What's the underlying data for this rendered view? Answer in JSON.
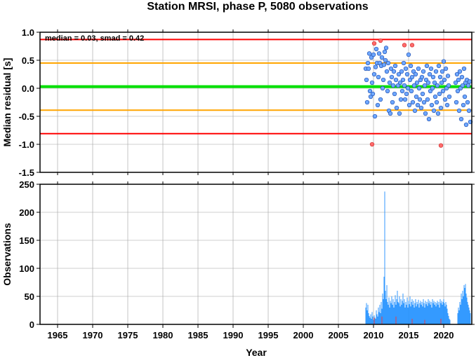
{
  "title": "Station MRSI, phase P, 5080 observations",
  "colors": {
    "red_line": "#ff0000",
    "orange_line": "#ffa500",
    "green_line": "#00e000",
    "point_fill": "#6fa8ff",
    "point_stroke": "#1f4fb0",
    "outlier_fill": "#ff6b6b",
    "outlier_stroke": "#d03030",
    "bar": "#1e90ff",
    "bar_red": "#ff3030",
    "grid": "#a0a0a0"
  },
  "chart_data": [
    {
      "type": "scatter",
      "ylabel": "Median residual [s]",
      "annotation": "median = 0.03, smad = 0.42",
      "xlim": [
        1962.5,
        2024.0
      ],
      "ylim": [
        -1.5,
        1.0
      ],
      "yticks": [
        -1.5,
        -1.0,
        -0.5,
        0.0,
        0.5,
        1.0
      ],
      "ytick_labels": [
        "-1.5",
        "-1.0",
        "-0.5",
        "0.0",
        "0.5",
        "1.0"
      ],
      "grid": true,
      "reference_lines": [
        {
          "kind": "median",
          "y": 0.03,
          "color": "green"
        },
        {
          "kind": "plus_1smad",
          "y": 0.45,
          "color": "orange"
        },
        {
          "kind": "minus_1smad",
          "y": -0.39,
          "color": "orange"
        },
        {
          "kind": "plus_2smad",
          "y": 0.87,
          "color": "red"
        },
        {
          "kind": "minus_2smad",
          "y": -0.81,
          "color": "red"
        }
      ],
      "points": [
        [
          2008.9,
          0.35
        ],
        [
          2009.0,
          0.15
        ],
        [
          2009.1,
          -0.25
        ],
        [
          2009.2,
          0.45
        ],
        [
          2009.3,
          0.35
        ],
        [
          2009.4,
          0.62
        ],
        [
          2009.5,
          -0.05
        ],
        [
          2009.6,
          -0.15
        ],
        [
          2009.7,
          0.55
        ],
        [
          2009.8,
          0.1
        ],
        [
          2009.9,
          -0.1
        ],
        [
          2010.0,
          0.6
        ],
        [
          2010.1,
          0.25
        ],
        [
          2010.2,
          -0.5
        ],
        [
          2010.3,
          0.38
        ],
        [
          2010.4,
          0.7
        ],
        [
          2010.5,
          0.45
        ],
        [
          2010.6,
          -0.3
        ],
        [
          2010.7,
          0.2
        ],
        [
          2010.8,
          0.62
        ],
        [
          2010.9,
          0.45
        ],
        [
          2011.0,
          -0.2
        ],
        [
          2011.1,
          0.4
        ],
        [
          2011.2,
          0.55
        ],
        [
          2011.3,
          0.0
        ],
        [
          2011.4,
          0.15
        ],
        [
          2011.5,
          0.42
        ],
        [
          2011.6,
          0.65
        ],
        [
          2011.7,
          0.5
        ],
        [
          2011.8,
          0.72
        ],
        [
          2011.9,
          0.3
        ],
        [
          2012.0,
          -0.05
        ],
        [
          2012.1,
          0.45
        ],
        [
          2012.2,
          -0.4
        ],
        [
          2012.3,
          0.1
        ],
        [
          2012.4,
          -0.45
        ],
        [
          2012.5,
          0.35
        ],
        [
          2012.6,
          0.2
        ],
        [
          2012.7,
          -0.25
        ],
        [
          2012.8,
          0.05
        ],
        [
          2012.9,
          0.3
        ],
        [
          2013.0,
          -0.1
        ],
        [
          2013.1,
          0.4
        ],
        [
          2013.2,
          0.15
        ],
        [
          2013.3,
          -0.35
        ],
        [
          2013.5,
          0.05
        ],
        [
          2013.6,
          0.25
        ],
        [
          2013.7,
          -0.45
        ],
        [
          2013.8,
          0.1
        ],
        [
          2013.9,
          -0.2
        ],
        [
          2014.0,
          0.3
        ],
        [
          2014.1,
          -0.05
        ],
        [
          2014.2,
          0.15
        ],
        [
          2014.3,
          0.45
        ],
        [
          2014.4,
          0.05
        ],
        [
          2014.5,
          -0.2
        ],
        [
          2014.6,
          0.35
        ],
        [
          2014.7,
          -0.1
        ],
        [
          2014.8,
          0.25
        ],
        [
          2014.9,
          0.0
        ],
        [
          2015.0,
          0.6
        ],
        [
          2015.1,
          -0.3
        ],
        [
          2015.2,
          0.15
        ],
        [
          2015.3,
          0.4
        ],
        [
          2015.4,
          -0.05
        ],
        [
          2015.5,
          0.2
        ],
        [
          2015.6,
          -0.25
        ],
        [
          2015.7,
          0.3
        ],
        [
          2015.8,
          0.05
        ],
        [
          2015.9,
          -0.4
        ],
        [
          2016.0,
          0.25
        ],
        [
          2016.1,
          -0.15
        ],
        [
          2016.2,
          0.1
        ],
        [
          2016.3,
          -0.3
        ],
        [
          2016.4,
          0.35
        ],
        [
          2016.5,
          0.0
        ],
        [
          2016.6,
          -0.2
        ],
        [
          2016.7,
          0.15
        ],
        [
          2016.8,
          -0.35
        ],
        [
          2016.9,
          0.2
        ],
        [
          2017.0,
          -0.1
        ],
        [
          2017.1,
          0.3
        ],
        [
          2017.2,
          -0.25
        ],
        [
          2017.3,
          0.05
        ],
        [
          2017.4,
          -0.45
        ],
        [
          2017.5,
          0.15
        ],
        [
          2017.6,
          0.4
        ],
        [
          2017.7,
          -0.2
        ],
        [
          2017.8,
          0.1
        ],
        [
          2017.9,
          -0.55
        ],
        [
          2018.0,
          0.25
        ],
        [
          2018.1,
          -0.05
        ],
        [
          2018.2,
          0.35
        ],
        [
          2018.3,
          -0.3
        ],
        [
          2018.4,
          0.0
        ],
        [
          2018.5,
          0.2
        ],
        [
          2018.6,
          -0.4
        ],
        [
          2018.7,
          0.1
        ],
        [
          2018.8,
          -0.15
        ],
        [
          2018.9,
          0.3
        ],
        [
          2019.0,
          -0.25
        ],
        [
          2019.1,
          0.05
        ],
        [
          2019.2,
          -0.45
        ],
        [
          2019.3,
          0.4
        ],
        [
          2019.4,
          -0.1
        ],
        [
          2019.5,
          0.2
        ],
        [
          2019.6,
          -0.35
        ],
        [
          2019.7,
          0.1
        ],
        [
          2019.8,
          0.3
        ],
        [
          2019.9,
          -0.05
        ],
        [
          2020.0,
          0.48
        ],
        [
          2020.1,
          0.15
        ],
        [
          2020.2,
          -0.2
        ],
        [
          2020.3,
          0.35
        ],
        [
          2020.4,
          0.0
        ],
        [
          2020.5,
          -0.3
        ],
        [
          2020.6,
          0.22
        ],
        [
          2020.7,
          0.05
        ],
        [
          2020.8,
          -0.15
        ],
        [
          2021.7,
          0.1
        ],
        [
          2021.8,
          -0.25
        ],
        [
          2021.9,
          0.25
        ],
        [
          2022.0,
          -0.05
        ],
        [
          2022.1,
          0.15
        ],
        [
          2022.2,
          -0.4
        ],
        [
          2022.3,
          0.3
        ],
        [
          2022.4,
          0.0
        ],
        [
          2022.5,
          -0.55
        ],
        [
          2022.6,
          0.2
        ],
        [
          2022.7,
          0.05
        ],
        [
          2022.8,
          -0.3
        ],
        [
          2022.9,
          0.35
        ],
        [
          2023.0,
          -0.15
        ],
        [
          2023.1,
          0.1
        ],
        [
          2023.2,
          -0.65
        ],
        [
          2023.3,
          0.15
        ],
        [
          2023.4,
          -0.25
        ],
        [
          2023.5,
          0.05
        ],
        [
          2023.6,
          -0.4
        ],
        [
          2023.7,
          0.12
        ],
        [
          2023.8,
          -0.6
        ]
      ],
      "outliers": [
        [
          2009.8,
          -1.0
        ],
        [
          2010.1,
          0.8
        ],
        [
          2011.0,
          0.85
        ],
        [
          2014.4,
          0.77
        ],
        [
          2015.5,
          0.77
        ],
        [
          2019.6,
          -1.02
        ]
      ]
    },
    {
      "type": "bar",
      "ylabel": "Observations",
      "xlabel": "Year",
      "xlim": [
        1962.5,
        2024.0
      ],
      "ylim": [
        0,
        250
      ],
      "yticks": [
        0,
        50,
        100,
        150,
        200,
        250
      ],
      "ytick_labels": [
        "0",
        "50",
        "100",
        "150",
        "200",
        "250"
      ],
      "xticks": [
        1965,
        1970,
        1975,
        1980,
        1985,
        1990,
        1995,
        2000,
        2005,
        2010,
        2015,
        2020
      ],
      "xtick_labels": [
        "1965",
        "1970",
        "1975",
        "1980",
        "1985",
        "1990",
        "1995",
        "2000",
        "2005",
        "2010",
        "2015",
        "2020"
      ],
      "grid": true,
      "bins": [
        [
          2008.9,
          30
        ],
        [
          2009.0,
          38
        ],
        [
          2009.1,
          25
        ],
        [
          2009.2,
          35
        ],
        [
          2009.3,
          20
        ],
        [
          2009.4,
          15
        ],
        [
          2009.5,
          12
        ],
        [
          2009.6,
          18
        ],
        [
          2009.7,
          10
        ],
        [
          2009.8,
          22
        ],
        [
          2009.9,
          14
        ],
        [
          2010.0,
          8
        ],
        [
          2010.1,
          16
        ],
        [
          2010.2,
          12
        ],
        [
          2010.3,
          10
        ],
        [
          2010.4,
          25
        ],
        [
          2010.5,
          18
        ],
        [
          2010.6,
          14
        ],
        [
          2010.7,
          30
        ],
        [
          2010.8,
          22
        ],
        [
          2010.9,
          35
        ],
        [
          2011.0,
          20
        ],
        [
          2011.1,
          40
        ],
        [
          2011.2,
          28
        ],
        [
          2011.3,
          55
        ],
        [
          2011.4,
          45
        ],
        [
          2011.5,
          85
        ],
        [
          2011.6,
          237
        ],
        [
          2011.7,
          60
        ],
        [
          2011.8,
          45
        ],
        [
          2011.9,
          70
        ],
        [
          2012.0,
          40
        ],
        [
          2012.1,
          35
        ],
        [
          2012.2,
          48
        ],
        [
          2012.3,
          30
        ],
        [
          2012.4,
          42
        ],
        [
          2012.5,
          38
        ],
        [
          2012.6,
          50
        ],
        [
          2012.7,
          35
        ],
        [
          2012.8,
          45
        ],
        [
          2012.9,
          30
        ],
        [
          2013.0,
          40
        ],
        [
          2013.1,
          52
        ],
        [
          2013.2,
          35
        ],
        [
          2013.3,
          45
        ],
        [
          2013.4,
          60
        ],
        [
          2013.5,
          40
        ],
        [
          2013.6,
          38
        ],
        [
          2013.7,
          50
        ],
        [
          2013.8,
          32
        ],
        [
          2013.9,
          45
        ],
        [
          2014.0,
          35
        ],
        [
          2014.1,
          42
        ],
        [
          2014.2,
          55
        ],
        [
          2014.3,
          38
        ],
        [
          2014.4,
          45
        ],
        [
          2014.5,
          30
        ],
        [
          2014.6,
          40
        ],
        [
          2014.7,
          35
        ],
        [
          2014.8,
          48
        ],
        [
          2014.9,
          30
        ],
        [
          2015.0,
          42
        ],
        [
          2015.1,
          36
        ],
        [
          2015.2,
          50
        ],
        [
          2015.3,
          32
        ],
        [
          2015.4,
          40
        ],
        [
          2015.5,
          45
        ],
        [
          2015.6,
          35
        ],
        [
          2015.7,
          42
        ],
        [
          2015.8,
          30
        ],
        [
          2015.9,
          38
        ],
        [
          2016.0,
          45
        ],
        [
          2016.1,
          32
        ],
        [
          2016.2,
          40
        ],
        [
          2016.3,
          36
        ],
        [
          2016.4,
          44
        ],
        [
          2016.5,
          30
        ],
        [
          2016.6,
          38
        ],
        [
          2016.7,
          42
        ],
        [
          2016.8,
          35
        ],
        [
          2016.9,
          40
        ],
        [
          2017.0,
          32
        ],
        [
          2017.1,
          45
        ],
        [
          2017.2,
          38
        ],
        [
          2017.3,
          30
        ],
        [
          2017.4,
          42
        ],
        [
          2017.5,
          36
        ],
        [
          2017.6,
          40
        ],
        [
          2017.7,
          33
        ],
        [
          2017.8,
          45
        ],
        [
          2017.9,
          38
        ],
        [
          2018.0,
          42
        ],
        [
          2018.1,
          35
        ],
        [
          2018.2,
          40
        ],
        [
          2018.3,
          30
        ],
        [
          2018.4,
          45
        ],
        [
          2018.5,
          38
        ],
        [
          2018.6,
          42
        ],
        [
          2018.7,
          35
        ],
        [
          2018.8,
          40
        ],
        [
          2018.9,
          32
        ],
        [
          2019.0,
          38
        ],
        [
          2019.1,
          42
        ],
        [
          2019.2,
          35
        ],
        [
          2019.3,
          40
        ],
        [
          2019.4,
          30
        ],
        [
          2019.5,
          45
        ],
        [
          2019.6,
          38
        ],
        [
          2019.7,
          42
        ],
        [
          2019.8,
          35
        ],
        [
          2019.9,
          40
        ],
        [
          2020.0,
          45
        ],
        [
          2020.1,
          38
        ],
        [
          2020.2,
          32
        ],
        [
          2020.3,
          40
        ],
        [
          2020.4,
          35
        ],
        [
          2020.5,
          28
        ],
        [
          2020.6,
          20
        ],
        [
          2020.7,
          15
        ],
        [
          2020.8,
          10
        ],
        [
          2020.9,
          8
        ],
        [
          2022.0,
          20
        ],
        [
          2022.1,
          30
        ],
        [
          2022.2,
          25
        ],
        [
          2022.3,
          40
        ],
        [
          2022.4,
          35
        ],
        [
          2022.5,
          55
        ],
        [
          2022.6,
          45
        ],
        [
          2022.7,
          60
        ],
        [
          2022.8,
          50
        ],
        [
          2022.9,
          70
        ],
        [
          2023.0,
          65
        ],
        [
          2023.1,
          72
        ],
        [
          2023.2,
          55
        ],
        [
          2023.3,
          48
        ],
        [
          2023.4,
          40
        ],
        [
          2023.5,
          35
        ],
        [
          2023.6,
          30
        ],
        [
          2023.7,
          25
        ],
        [
          2023.8,
          20
        ]
      ],
      "red_bins": [
        [
          2010.1,
          12
        ],
        [
          2011.2,
          14
        ],
        [
          2013.2,
          14
        ],
        [
          2015.5,
          10
        ],
        [
          2017.3,
          8
        ],
        [
          2019.6,
          10
        ]
      ]
    }
  ]
}
